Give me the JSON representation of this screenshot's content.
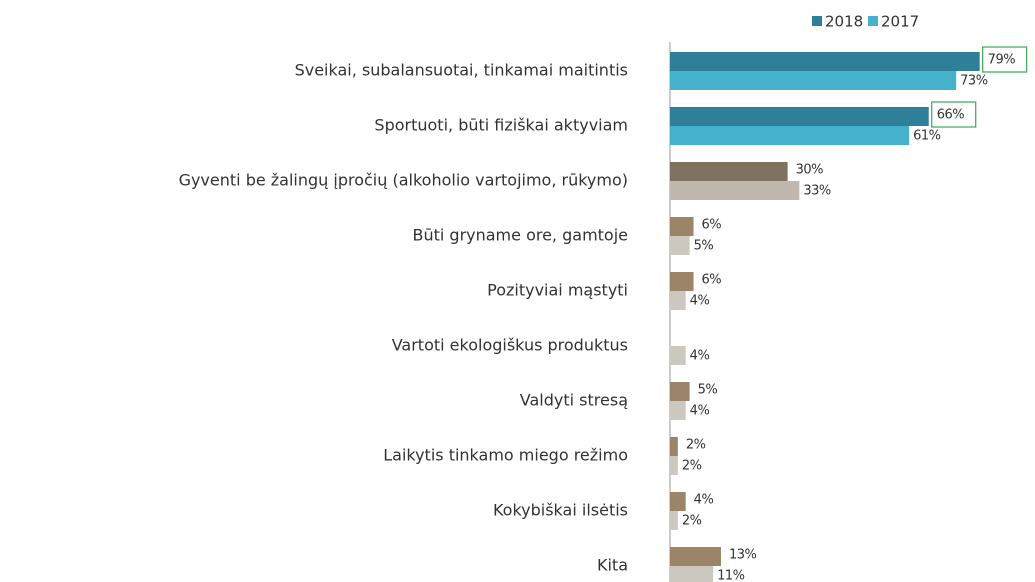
{
  "chart_data": {
    "type": "bar",
    "orientation": "horizontal",
    "categories": [
      "Sveikai, subalansuotai, tinkamai maitintis",
      "Sportuoti, būti fiziškai aktyviam",
      "Gyventi be žalingų įpročių (alkoholio vartojimo, rūkymo)",
      "Būti gryname ore, gamtoje",
      "Pozityviai mąstyti",
      "Vartoti ekologiškus produktus",
      "Valdyti stresą",
      "Laikytis tinkamo miego režimo",
      "Kokybiškai ilsėtis",
      "Kita"
    ],
    "series": [
      {
        "name": "2018",
        "color": "#2f7f99",
        "colors": [
          "#2f7f99",
          "#2f7f99",
          "#7f7161",
          "#9c8468",
          "#9c8468",
          "#9c8468",
          "#9c8468",
          "#9c8468",
          "#9c8468",
          "#9c8468"
        ],
        "values": [
          79,
          66,
          30,
          6,
          6,
          null,
          5,
          2,
          4,
          13
        ],
        "value_labels": [
          "79%",
          "66%",
          "30%",
          "6%",
          "6%",
          null,
          "5%",
          "2%",
          "4%",
          "13%"
        ]
      },
      {
        "name": "2017",
        "color": "#46b1cc",
        "colors": [
          "#46b1cc",
          "#46b1cc",
          "#c0b8ae",
          "#cdc8bf",
          "#cdc8bf",
          "#cdc8bf",
          "#cdc8bf",
          "#cdc8bf",
          "#cdc8bf",
          "#cdc8bf"
        ],
        "values": [
          73,
          61,
          33,
          5,
          4,
          4,
          4,
          2,
          2,
          11
        ],
        "value_labels": [
          "73%",
          "61%",
          "33%",
          "5%",
          "4%",
          "4%",
          "4%",
          "2%",
          "2%",
          "11%"
        ]
      }
    ],
    "highlighted_labels": [
      0,
      1
    ],
    "highlight_color": "#3aa655",
    "legend": "top"
  }
}
